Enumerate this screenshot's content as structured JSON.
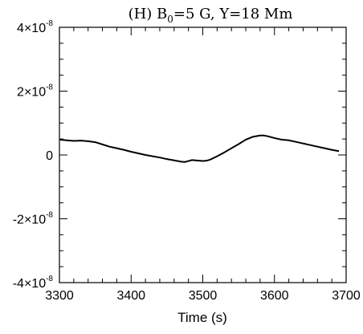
{
  "chart_data": {
    "type": "line",
    "title": {
      "prefix": "(H) B",
      "subscript": "0",
      "suffix": "=5 G,   Y=18 Mm"
    },
    "xlabel": "Time (s)",
    "ylabel": "",
    "xlim": [
      3300,
      3700
    ],
    "ylim": [
      -4e-08,
      4e-08
    ],
    "grid": false,
    "x_ticks": [
      {
        "value": 3300,
        "label": "3300"
      },
      {
        "value": 3400,
        "label": "3400"
      },
      {
        "value": 3500,
        "label": "3500"
      },
      {
        "value": 3600,
        "label": "3600"
      },
      {
        "value": 3700,
        "label": "3700"
      }
    ],
    "y_ticks": [
      {
        "value": 4e-08,
        "mantissa": "4",
        "base": "×10",
        "exp": "-8"
      },
      {
        "value": 2e-08,
        "mantissa": "2",
        "base": "×10",
        "exp": "-8"
      },
      {
        "value": 0,
        "mantissa": "0",
        "base": "",
        "exp": ""
      },
      {
        "value": -2e-08,
        "mantissa": "-2",
        "base": "×10",
        "exp": "-8"
      },
      {
        "value": -4e-08,
        "mantissa": "-4",
        "base": "×10",
        "exp": "-8"
      }
    ],
    "x_minor_step": 20,
    "y_minor_step": 5e-09,
    "line_color": "#000000",
    "series": [
      {
        "x": [
          3300,
          3310,
          3320,
          3330,
          3340,
          3350,
          3360,
          3370,
          3380,
          3390,
          3400,
          3410,
          3420,
          3430,
          3440,
          3450,
          3460,
          3470,
          3475,
          3480,
          3485,
          3490,
          3500,
          3505,
          3510,
          3520,
          3530,
          3540,
          3550,
          3560,
          3570,
          3580,
          3585,
          3590,
          3600,
          3610,
          3620,
          3630,
          3640,
          3650,
          3660,
          3670,
          3680,
          3690
        ],
        "y": [
          4.8e-09,
          4.6e-09,
          4.4e-09,
          4.5e-09,
          4.3e-09,
          4e-09,
          3.3e-09,
          2.6e-09,
          2.1e-09,
          1.6e-09,
          1e-09,
          5e-10,
          0.0,
          -4e-10,
          -8e-10,
          -1.3e-09,
          -1.7e-09,
          -2.1e-09,
          -2.2e-09,
          -1.9e-09,
          -1.6e-09,
          -1.7e-09,
          -1.9e-09,
          -1.8e-09,
          -1.5e-09,
          -4e-10,
          8e-10,
          2.1e-09,
          3.4e-09,
          4.8e-09,
          5.7e-09,
          6.1e-09,
          6.1e-09,
          5.9e-09,
          5.3e-09,
          4.8e-09,
          4.6e-09,
          4.1e-09,
          3.6e-09,
          3.1e-09,
          2.6e-09,
          2.1e-09,
          1.6e-09,
          1.2e-09
        ]
      }
    ]
  }
}
